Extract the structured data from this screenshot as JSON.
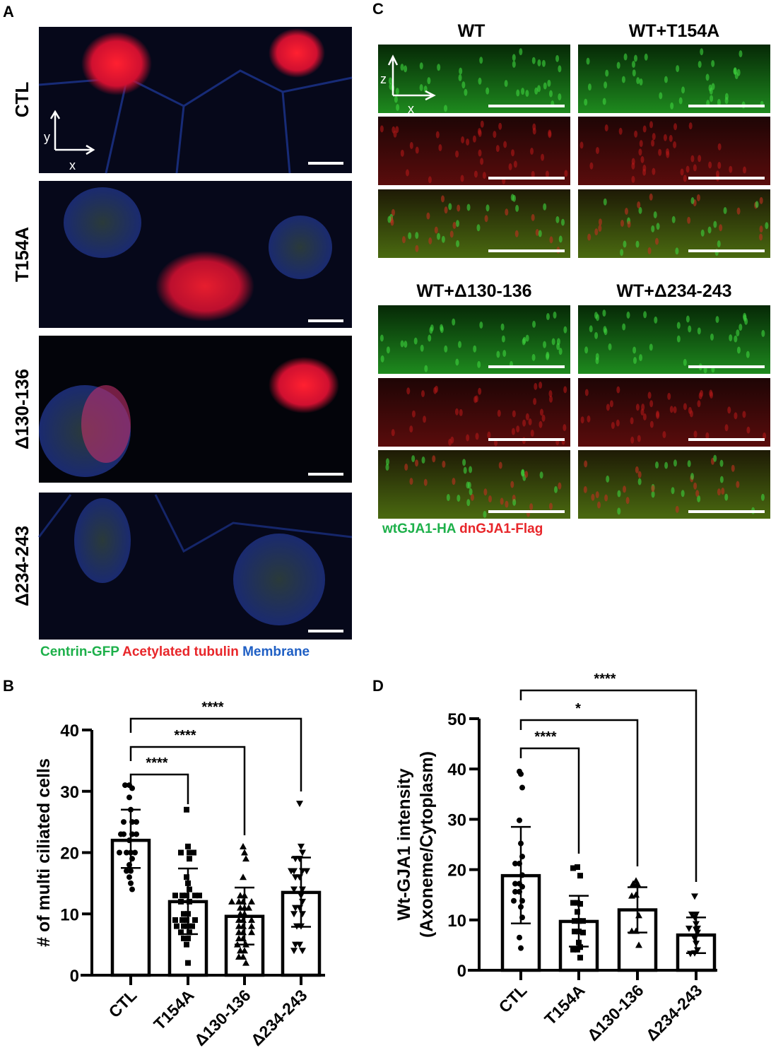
{
  "panel_labels": {
    "a": "A",
    "b": "B",
    "c": "C",
    "d": "D"
  },
  "panel_a": {
    "rows": [
      "CTL",
      "T154A",
      "Δ130-136",
      "Δ234-243"
    ],
    "axis_labels": {
      "y": "y",
      "x": "x"
    },
    "legend": [
      {
        "text": "Centrin-GFP",
        "color": "#1db04a"
      },
      {
        "text": "Acetylated tubulin",
        "color": "#e8262a"
      },
      {
        "text": "Membrane",
        "color": "#1f5fc4"
      }
    ]
  },
  "panel_c": {
    "titles": [
      "WT",
      "WT+T154A",
      "WT+Δ130-136",
      "WT+Δ234-243"
    ],
    "axis_labels": {
      "z": "z",
      "x": "x"
    },
    "legend": [
      {
        "text": "wtGJA1-HA",
        "color": "#1db04a"
      },
      {
        "text": "dnGJA1-Flag",
        "color": "#e8262a"
      }
    ]
  },
  "chart_data": [
    {
      "panel": "B",
      "type": "bar",
      "ylabel": "# of multi ciliated cells",
      "categories": [
        "CTL",
        "T154A",
        "Δ130-136",
        "Δ234-243"
      ],
      "yticks": [
        "0",
        "10",
        "20",
        "30",
        "40"
      ],
      "ylim": [
        0,
        40
      ],
      "values": [
        22,
        12,
        9.6,
        13.5
      ],
      "sd_range": [
        [
          17.5,
          27
        ],
        [
          6.7,
          17.4
        ],
        [
          5,
          14.3
        ],
        [
          7.9,
          19.2
        ]
      ],
      "markers": [
        "circle",
        "square",
        "triangle-up",
        "triangle-down"
      ],
      "points": [
        [
          31,
          31,
          30.5,
          29,
          27,
          25,
          25,
          25,
          23,
          23,
          23,
          23,
          22,
          20,
          20,
          20,
          20,
          19,
          18,
          17,
          17,
          16,
          15,
          14
        ],
        [
          27,
          21,
          20,
          20,
          20,
          19,
          16,
          15,
          14,
          13,
          13,
          13,
          13,
          13,
          12,
          12,
          10,
          10,
          9,
          9,
          9,
          9,
          8,
          8,
          8,
          8,
          7,
          7,
          6,
          6,
          5,
          2
        ],
        [
          21,
          20,
          19,
          16,
          13,
          13,
          12,
          12,
          12,
          12,
          11,
          11,
          11,
          10,
          10,
          9,
          9,
          9,
          8,
          8,
          8,
          7,
          7,
          7,
          6,
          6,
          5,
          5,
          4,
          4,
          3,
          3,
          2
        ],
        [
          28,
          21,
          20,
          19,
          19,
          17,
          17,
          17,
          17,
          16,
          16,
          14,
          14,
          13,
          12,
          11,
          11,
          10,
          10,
          8,
          8,
          5,
          5,
          4,
          4
        ]
      ],
      "significance": [
        {
          "from": "CTL",
          "to": "T154A",
          "label": "****"
        },
        {
          "from": "CTL",
          "to": "Δ130-136",
          "label": "****"
        },
        {
          "from": "CTL",
          "to": "Δ234-243",
          "label": "****"
        }
      ]
    },
    {
      "panel": "D",
      "type": "bar",
      "ylabel": "Wt-GJA1 intensity",
      "ylabel2": "(Axoneme/Cytoplasm)",
      "categories": [
        "CTL",
        "T154A",
        "Δ130-136",
        "Δ234-243"
      ],
      "yticks": [
        "0",
        "10",
        "20",
        "30",
        "40",
        "50"
      ],
      "ylim": [
        0,
        50
      ],
      "values": [
        18.8,
        9.7,
        12,
        7
      ],
      "sd_range": [
        [
          9.3,
          28.5
        ],
        [
          4.7,
          14.8
        ],
        [
          7.5,
          16.5
        ],
        [
          3.4,
          10.5
        ]
      ],
      "markers": [
        "circle",
        "square",
        "triangle-up",
        "triangle-down"
      ],
      "points": [
        [
          39.5,
          39,
          36.3,
          29.8,
          25.2,
          22.6,
          21.2,
          21.2,
          18.9,
          17.2,
          17.2,
          16.6,
          15.6,
          15.6,
          13.8,
          13.8,
          12.6,
          10.5,
          6.5,
          4.4
        ],
        [
          20.5,
          20.3,
          18.8,
          13.4,
          13.4,
          13.2,
          11.6,
          9.8,
          9.8,
          9.8,
          7.7,
          7.7,
          7.5,
          5.5,
          4.6,
          4.1,
          4.1,
          2.5
        ],
        [
          17.8,
          17.2,
          17.2,
          15,
          14.8,
          10.9,
          7.8,
          7.8,
          5
        ],
        [
          14.7,
          11.1,
          11.1,
          10.5,
          9.2,
          8.3,
          8.3,
          8.1,
          7.5,
          6.3,
          5.3,
          4,
          3.4,
          3.3
        ]
      ],
      "significance": [
        {
          "from": "CTL",
          "to": "T154A",
          "label": "****"
        },
        {
          "from": "CTL",
          "to": "Δ130-136",
          "label": "*"
        },
        {
          "from": "CTL",
          "to": "Δ234-243",
          "label": "****"
        }
      ]
    }
  ]
}
